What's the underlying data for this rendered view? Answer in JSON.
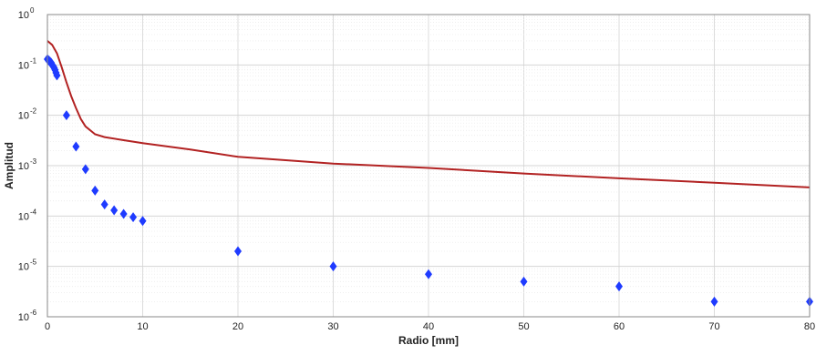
{
  "chart_data": {
    "type": "scatter",
    "title": "",
    "xlabel": "Radio [mm]",
    "ylabel": "Amplitud",
    "xlim": [
      0,
      80
    ],
    "ylim": [
      1e-06,
      1
    ],
    "yscale": "log",
    "grid": true,
    "x_ticks": [
      0,
      10,
      20,
      30,
      40,
      50,
      60,
      70,
      80
    ],
    "y_tick_exponents": [
      0,
      -1,
      -2,
      -3,
      -4,
      -5,
      -6
    ],
    "y_tick_base": "10",
    "series": [
      {
        "type": "scatter",
        "marker": "diamond",
        "color": "#1f3bff",
        "x": [
          0,
          0.1,
          0.2,
          0.3,
          0.4,
          0.5,
          0.6,
          0.7,
          0.8,
          0.9,
          1,
          2,
          3,
          4,
          5,
          6,
          7,
          8,
          9,
          10,
          20,
          30,
          40,
          50,
          60,
          70,
          80
        ],
        "y": [
          0.13,
          0.125,
          0.12,
          0.115,
          0.11,
          0.1,
          0.095,
          0.088,
          0.08,
          0.07,
          0.062,
          0.01,
          0.0024,
          0.00085,
          0.00032,
          0.00017,
          0.00013,
          0.00011,
          9.5e-05,
          8e-05,
          2e-05,
          1e-05,
          7e-06,
          5e-06,
          4e-06,
          2e-06,
          2e-06
        ]
      },
      {
        "type": "line",
        "color": "#b22222",
        "x": [
          0,
          0.5,
          1,
          1.5,
          2,
          2.5,
          3,
          3.5,
          4,
          5,
          6,
          8,
          10,
          15,
          20,
          30,
          40,
          50,
          60,
          70,
          80
        ],
        "y": [
          0.3,
          0.25,
          0.17,
          0.09,
          0.045,
          0.024,
          0.014,
          0.0085,
          0.006,
          0.0042,
          0.0037,
          0.0032,
          0.0028,
          0.0021,
          0.0015,
          0.0011,
          0.0009,
          0.0007,
          0.00056,
          0.00046,
          0.00037
        ]
      }
    ]
  }
}
